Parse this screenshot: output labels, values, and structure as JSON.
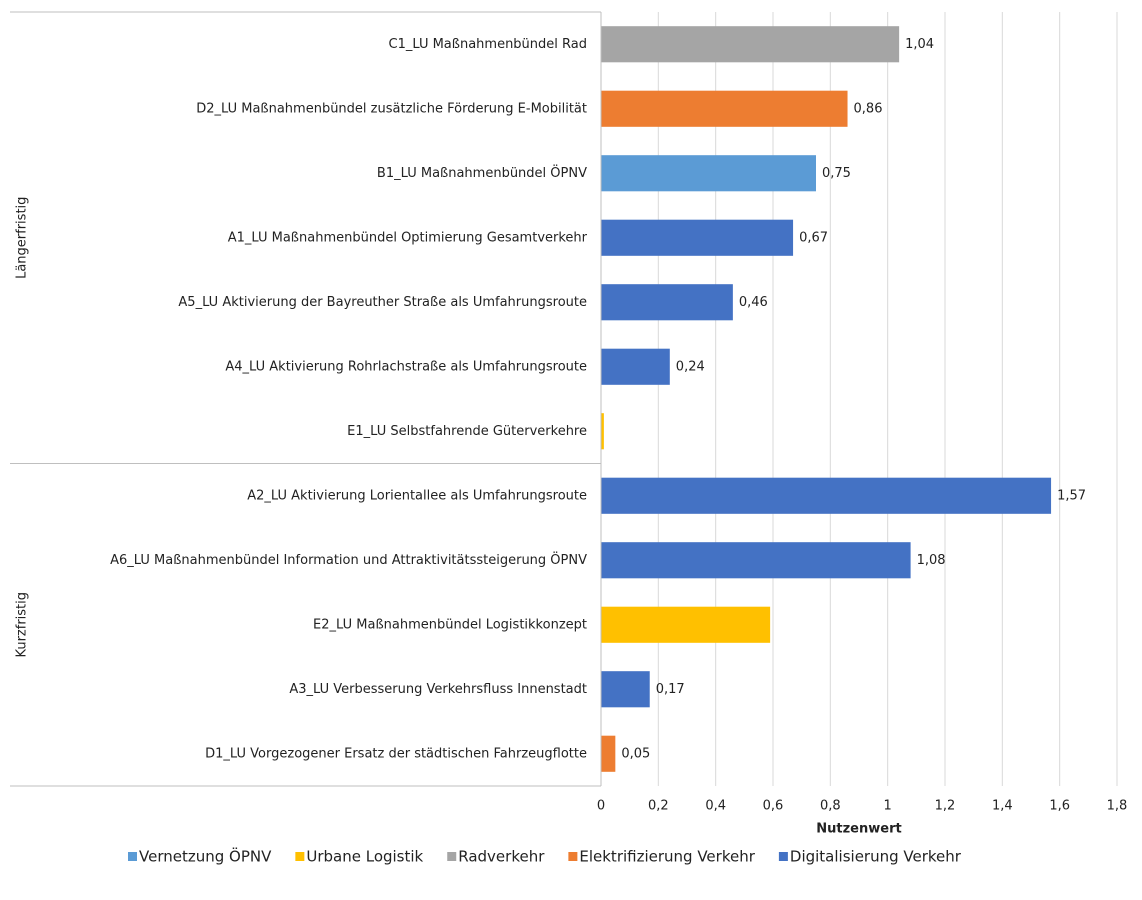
{
  "chart_data": {
    "type": "bar",
    "orientation": "horizontal",
    "xlabel": "Nutzenwert",
    "xlim": [
      0,
      1.8
    ],
    "xticks": [
      0,
      {
        "value": 0.2,
        "label": "0,2"
      },
      {
        "value": 0.4,
        "label": "0,4"
      },
      {
        "value": 0.6,
        "label": "0,6"
      },
      {
        "value": 0.8,
        "label": "0,8"
      },
      1,
      {
        "value": 1.2,
        "label": "1,2"
      },
      {
        "value": 1.4,
        "label": "1,4"
      },
      {
        "value": 1.6,
        "label": "1,6"
      },
      {
        "value": 1.8,
        "label": "1,8"
      }
    ],
    "grid": true,
    "groups": [
      {
        "name": "Längerfristig",
        "categories": [
          "C1_LU Maßnahmenbündel Rad",
          "D2_LU Maßnahmenbündel zusätzliche Förderung E-Mobilität",
          "B1_LU Maßnahmenbündel ÖPNV",
          "A1_LU Maßnahmenbündel Optimierung Gesamtverkehr",
          "A5_LU Aktivierung der Bayreuther Straße als Umfahrungsroute",
          "A4_LU Aktivierung Rohrlachstraße als Umfahrungsroute",
          "E1_LU Selbstfahrende Güterverkehre"
        ],
        "values": [
          1.04,
          0.86,
          0.75,
          0.67,
          0.46,
          0.24,
          0.01
        ],
        "value_labels": [
          "1,04",
          "0,86",
          "0,75",
          "0,67",
          "0,46",
          "0,24",
          null
        ],
        "colors": [
          "#a5a5a5",
          "#ed7d31",
          "#5b9bd5",
          "#4472c4",
          "#4472c4",
          "#4472c4",
          "#ffc000"
        ]
      },
      {
        "name": "Kurzfristig",
        "categories": [
          "A2_LU Aktivierung Lorientallee als Umfahrungsroute",
          "A6_LU Maßnahmenbündel Information und Attraktivitätssteigerung ÖPNV",
          "E2_LU Maßnahmenbündel Logistikkonzept",
          "A3_LU Verbesserung Verkehrsfluss Innenstadt",
          "D1_LU Vorgezogener Ersatz der städtischen Fahrzeugflotte"
        ],
        "values": [
          1.57,
          1.08,
          0.59,
          0.17,
          0.05
        ],
        "value_labels": [
          "1,57",
          "1,08",
          null,
          "0,17",
          "0,05"
        ],
        "colors": [
          "#4472c4",
          "#4472c4",
          "#ffc000",
          "#4472c4",
          "#ed7d31"
        ]
      }
    ],
    "legend": [
      {
        "name": "Vernetzung ÖPNV",
        "color": "#5b9bd5"
      },
      {
        "name": "Urbane Logistik",
        "color": "#ffc000"
      },
      {
        "name": "Radverkehr",
        "color": "#a5a5a5"
      },
      {
        "name": "Elektrifizierung Verkehr",
        "color": "#ed7d31"
      },
      {
        "name": "Digitalisierung Verkehr",
        "color": "#4472c4"
      }
    ]
  }
}
